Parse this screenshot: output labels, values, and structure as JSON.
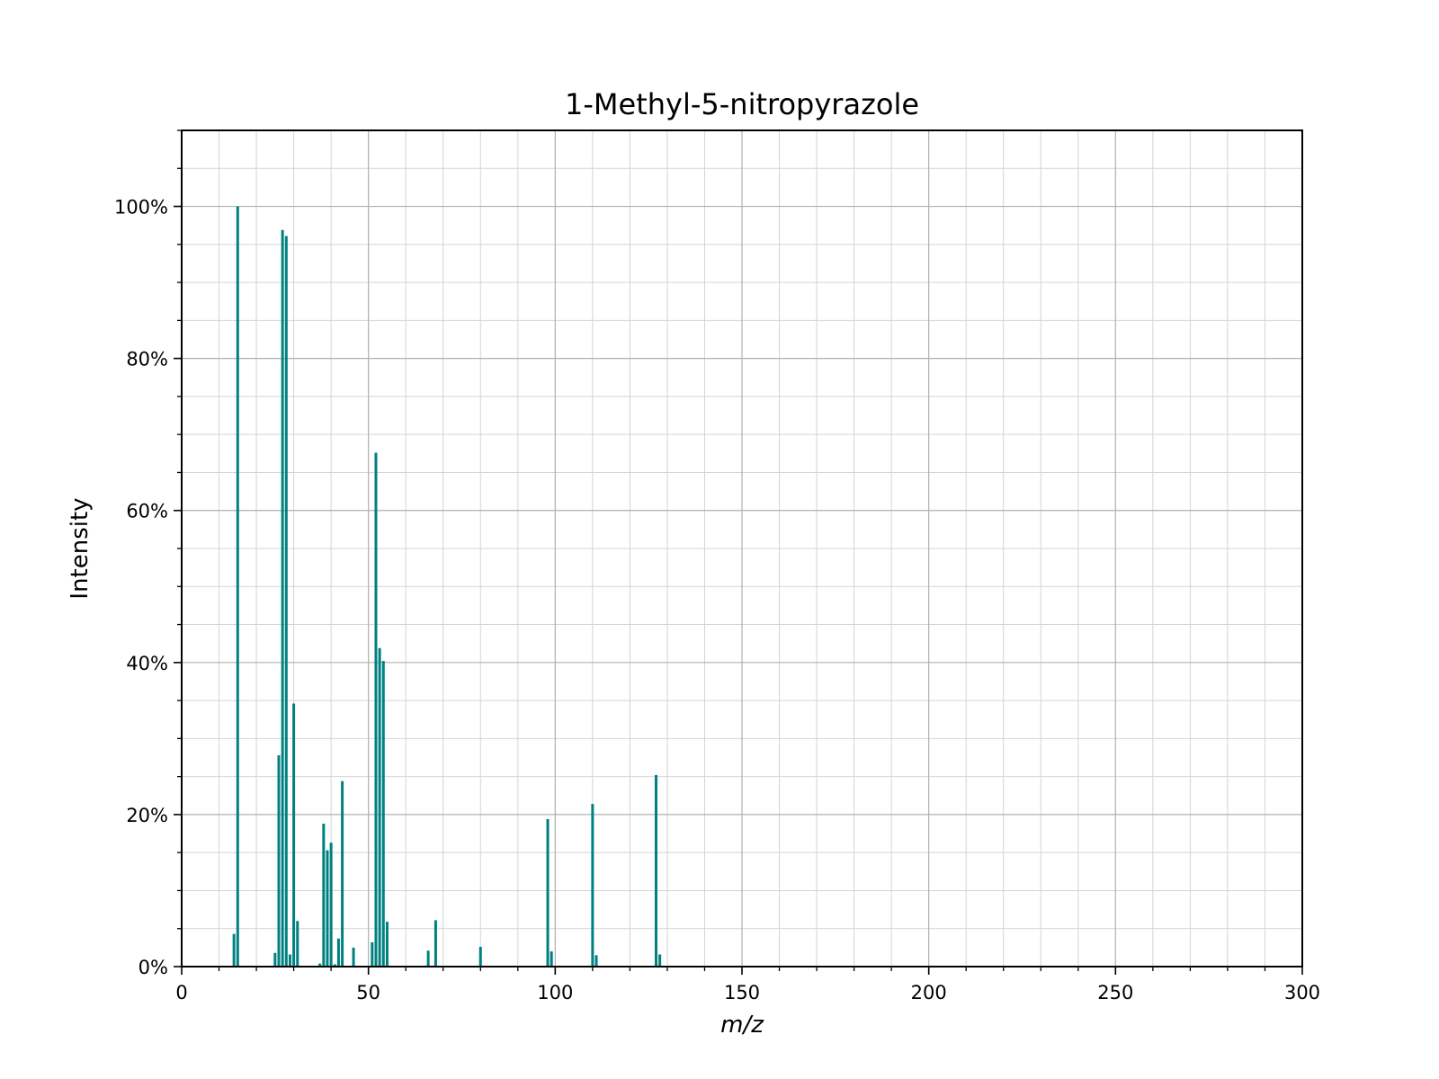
{
  "colors": {
    "bar": "#008080",
    "grid_major": "#b0b0b0",
    "grid_minor": "#d4d4d4",
    "axis": "#000000",
    "background": "#ffffff"
  },
  "chart_data": {
    "type": "bar",
    "title": "1-Methyl-5-nitropyrazole",
    "xlabel": "m/z",
    "ylabel": "Intensity",
    "xlim": [
      0,
      300
    ],
    "ylim": [
      0,
      110
    ],
    "xticks": [
      0,
      50,
      100,
      150,
      200,
      250,
      300
    ],
    "xtick_labels": [
      "0",
      "50",
      "100",
      "150",
      "200",
      "250",
      "300"
    ],
    "yticks": [
      0,
      20,
      40,
      60,
      80,
      100
    ],
    "ytick_labels": [
      "0%",
      "20%",
      "40%",
      "60%",
      "80%",
      "100%"
    ],
    "grid": true,
    "minor_grid": true,
    "x_minor_step": 10,
    "y_minor_step": 5,
    "y_unit": "percent",
    "series": [
      {
        "x": [
          14,
          15,
          25,
          26,
          27,
          28,
          29,
          30,
          31,
          37,
          38,
          39,
          40,
          41,
          42,
          43,
          46,
          51,
          52,
          53,
          54,
          55,
          66,
          68,
          80,
          98,
          99,
          110,
          111,
          127,
          128
        ],
        "values": [
          4.3,
          100,
          1.8,
          27.8,
          96.9,
          96.1,
          1.6,
          34.6,
          6.0,
          0.4,
          18.8,
          15.3,
          16.3,
          0.3,
          3.7,
          24.4,
          2.5,
          3.2,
          67.6,
          41.9,
          40.2,
          5.9,
          2.1,
          6.1,
          2.6,
          19.4,
          2.0,
          21.4,
          1.5,
          25.2,
          1.6
        ]
      }
    ]
  }
}
